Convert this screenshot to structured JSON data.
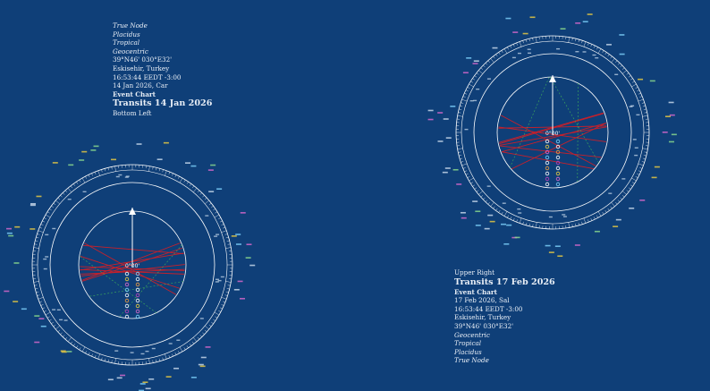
{
  "charts": [
    {
      "id": "bottom-left",
      "lines": [
        {
          "text": "True Node",
          "style": "it"
        },
        {
          "text": "Placidus",
          "style": "it"
        },
        {
          "text": "Tropical",
          "style": "it"
        },
        {
          "text": "Geocentric",
          "style": "it"
        },
        {
          "text": "39°N46' 030°E32'",
          "style": ""
        },
        {
          "text": "Eskisehir, Turkey",
          "style": ""
        },
        {
          "text": "16:53:44  EEDT -3:00",
          "style": ""
        },
        {
          "text": "14 Jan 2026, Car",
          "style": ""
        },
        {
          "text": "Event Chart",
          "style": "b"
        },
        {
          "text": "Transits 14 Jan 2026",
          "style": "big"
        },
        {
          "text": "Bottom Left",
          "style": ""
        }
      ],
      "center_label": "0°00'",
      "colors": {
        "aspect": "#c8202a",
        "ring": "#ffffff",
        "minor": "#3fae5a"
      }
    },
    {
      "id": "upper-right",
      "lines": [
        {
          "text": "Upper Right",
          "style": ""
        },
        {
          "text": "Transits 17 Feb 2026",
          "style": "big"
        },
        {
          "text": "Event Chart",
          "style": "b"
        },
        {
          "text": "17 Feb 2026, Sal",
          "style": ""
        },
        {
          "text": "16:53:44  EEDT -3:00",
          "style": ""
        },
        {
          "text": "Eskisehir, Turkey",
          "style": ""
        },
        {
          "text": "39°N46' 030°E32'",
          "style": ""
        },
        {
          "text": "Geocentric",
          "style": "it"
        },
        {
          "text": "Tropical",
          "style": "it"
        },
        {
          "text": "Placidus",
          "style": "it"
        },
        {
          "text": "True Node",
          "style": "it"
        }
      ],
      "center_label": "0°00'",
      "colors": {
        "aspect": "#c8202a",
        "ring": "#ffffff",
        "minor": "#3fae5a"
      }
    }
  ]
}
